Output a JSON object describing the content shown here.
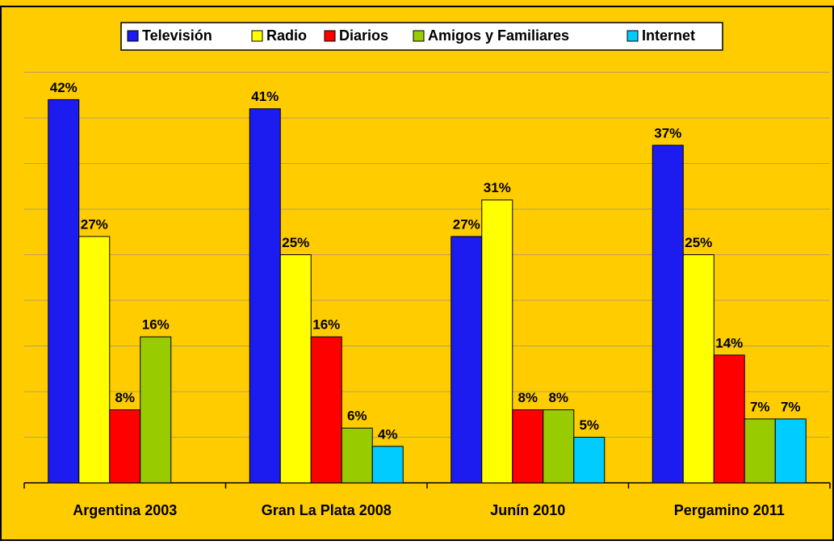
{
  "chart_data": {
    "type": "bar",
    "categories": [
      "Argentina 2003",
      "Gran La Plata 2008",
      "Junín 2010",
      "Pergamino 2011"
    ],
    "series": [
      {
        "name": "Televisión",
        "color": "#1c1cf0",
        "values": [
          42,
          41,
          27,
          37
        ],
        "value_labels": [
          "42%",
          "41%",
          "27%",
          "37%"
        ]
      },
      {
        "name": "Radio",
        "color": "#ffff00",
        "values": [
          27,
          25,
          31,
          25
        ],
        "value_labels": [
          "27%",
          "25%",
          "31%",
          "25%"
        ]
      },
      {
        "name": "Diarios",
        "color": "#ff0000",
        "values": [
          8,
          16,
          8,
          14
        ],
        "value_labels": [
          "8%",
          "16%",
          "8%",
          "14%"
        ]
      },
      {
        "name": "Amigos y Familiares",
        "color": "#99cc00",
        "values": [
          16,
          6,
          8,
          7
        ],
        "value_labels": [
          "16%",
          "6%",
          "8%",
          "7%"
        ]
      },
      {
        "name": "Internet",
        "color": "#00ccff",
        "values": [
          null,
          4,
          5,
          7
        ],
        "value_labels": [
          null,
          "4%",
          "5%",
          "7%"
        ]
      }
    ],
    "ylim": [
      0,
      45
    ],
    "yticks": [
      0,
      5,
      10,
      15,
      20,
      25,
      30,
      35,
      40,
      45
    ],
    "grid": true,
    "legend": "top"
  }
}
